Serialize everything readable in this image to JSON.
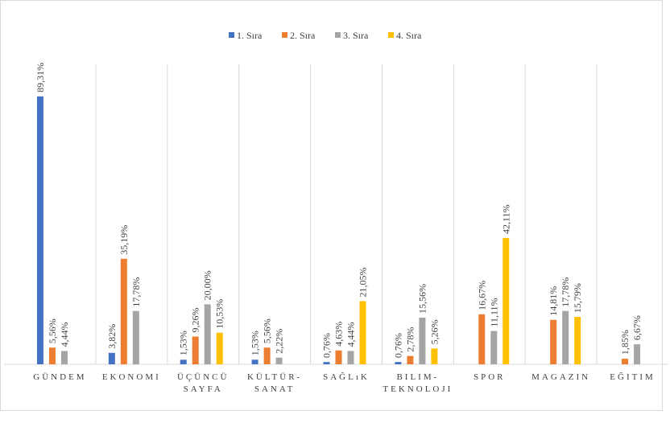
{
  "chart_data": {
    "type": "bar",
    "categories": [
      "GÜNDEM",
      "EKONOMI",
      "ÜÇÜNCÜ SAYFA",
      "KÜLTÜR-SANAT",
      "SAĞLıK",
      "BILIM-TEKNOLOJI",
      "SPOR",
      "MAGAZIN",
      "EĞITIM"
    ],
    "series": [
      {
        "name": "1. Sıra",
        "color": "#4472c4",
        "values": [
          89.31,
          3.82,
          1.53,
          1.53,
          0.76,
          0.76,
          null,
          null,
          null
        ],
        "value_labels": [
          "89,31%",
          "3,82%",
          "1,53%",
          "1,53%",
          "0,76%",
          "0,76%",
          null,
          null,
          null
        ]
      },
      {
        "name": "2. Sıra",
        "color": "#ed7d31",
        "values": [
          5.56,
          35.19,
          9.26,
          5.56,
          4.63,
          2.78,
          16.67,
          14.81,
          1.85
        ],
        "value_labels": [
          "5,56%",
          "35,19%",
          "9,26%",
          "5,56%",
          "4,63%",
          "2,78%",
          "16,67%",
          "14,81%",
          "1,85%"
        ]
      },
      {
        "name": "3. Sıra",
        "color": "#a5a5a5",
        "values": [
          4.44,
          17.78,
          20.0,
          2.22,
          4.44,
          15.56,
          11.11,
          17.78,
          6.67
        ],
        "value_labels": [
          "4,44%",
          "17,78%",
          "20,00%",
          "2,22%",
          "4,44%",
          "15,56%",
          "11,11%",
          "17,78%",
          "6,67%"
        ]
      },
      {
        "name": "4. Sıra",
        "color": "#ffc000",
        "values": [
          null,
          null,
          10.53,
          null,
          21.05,
          5.26,
          42.11,
          15.79,
          null
        ],
        "value_labels": [
          null,
          null,
          "10,53%",
          null,
          "21,05%",
          "5,26%",
          "42,11%",
          "15,79%",
          null
        ]
      }
    ],
    "legend": "top"
  }
}
